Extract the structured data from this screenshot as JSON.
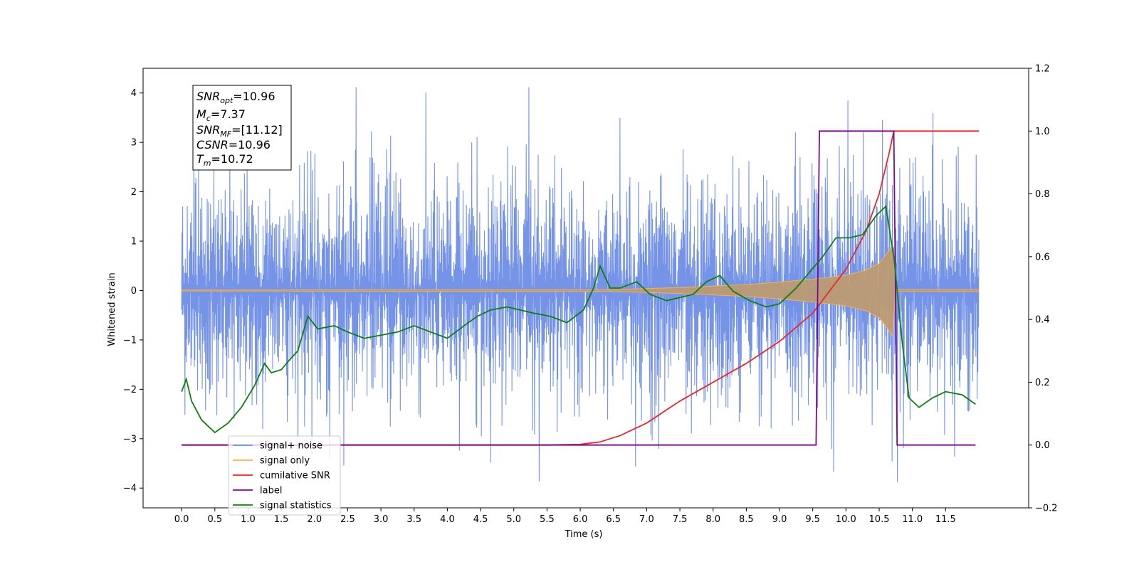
{
  "chart_data": {
    "type": "line",
    "xlabel": "Time (s)",
    "ylabel": "Whitened strain",
    "xlim": [
      -0.58,
      12.75
    ],
    "ylim": [
      -4.4,
      4.5
    ],
    "y2lim": [
      -0.2,
      1.2
    ],
    "x_ticks": [
      "0.0",
      "0.5",
      "1.0",
      "1.5",
      "2.0",
      "2.5",
      "3.0",
      "3.5",
      "4.0",
      "4.5",
      "5.0",
      "5.5",
      "6.0",
      "6.5",
      "7.0",
      "7.5",
      "8.0",
      "8.5",
      "9.0",
      "9.5",
      "10.0",
      "10.5",
      "11.0",
      "11.5"
    ],
    "y_ticks": [
      "4",
      "3",
      "2",
      "1",
      "0",
      "−1",
      "−2",
      "−3",
      "−4"
    ],
    "y2_ticks": [
      "1.2",
      "1.0",
      "0.8",
      "0.6",
      "0.4",
      "0.2",
      "0.0",
      "−0.2"
    ],
    "stats": [
      {
        "base": "SNR",
        "sub": "opt",
        "value": "=10.96"
      },
      {
        "base": "M",
        "sub": "c",
        "value": "=7.37"
      },
      {
        "base": "SNR",
        "sub": "MF",
        "value": "=[11.12]"
      },
      {
        "base": "CSNR",
        "sub": "",
        "value": "=10.96"
      },
      {
        "base": "T",
        "sub": "m",
        "value": "=10.72"
      }
    ],
    "legend_position": "lower-left",
    "series": [
      {
        "name": "signal+ noise",
        "color": "#6f8ee6",
        "axis": "left",
        "envelope": {
          "t_start": 0.0,
          "t_end": 12.0,
          "typical_amplitude": 1.7,
          "max": 4.12,
          "min": -3.88
        }
      },
      {
        "name": "signal only",
        "color": "#ffb347",
        "axis": "left",
        "chirp_envelope": {
          "t": [
            0.0,
            6.5,
            7.5,
            8.5,
            9.0,
            9.5,
            10.0,
            10.3,
            10.5,
            10.6,
            10.65,
            10.7,
            10.72,
            10.75,
            12.0
          ],
          "amp": [
            0.01,
            0.02,
            0.06,
            0.12,
            0.17,
            0.23,
            0.31,
            0.41,
            0.55,
            0.72,
            0.82,
            0.92,
            0.55,
            0.02,
            0.02
          ]
        }
      },
      {
        "name": "cumilative SNR",
        "color": "#e8262b",
        "axis": "right",
        "x": [
          0.0,
          5.5,
          6.0,
          6.3,
          6.6,
          7.0,
          7.5,
          8.0,
          8.5,
          9.0,
          9.5,
          10.0,
          10.3,
          10.5,
          10.65,
          10.72,
          12.0
        ],
        "y": [
          0.0,
          0.0,
          0.002,
          0.01,
          0.03,
          0.07,
          0.14,
          0.2,
          0.26,
          0.33,
          0.42,
          0.56,
          0.68,
          0.8,
          0.93,
          1.0,
          1.0
        ]
      },
      {
        "name": "label",
        "color": "#7b0a8c",
        "axis": "right",
        "x": [
          0.0,
          9.55,
          9.6,
          10.72,
          10.77,
          11.95
        ],
        "y": [
          0.0,
          0.0,
          1.0,
          1.0,
          0.0,
          0.0
        ]
      },
      {
        "name": "signal statistics",
        "color": "#107d10",
        "axis": "right",
        "x": [
          0.0,
          0.07,
          0.15,
          0.3,
          0.5,
          0.7,
          0.9,
          1.1,
          1.25,
          1.35,
          1.5,
          1.62,
          1.75,
          1.9,
          2.05,
          2.3,
          2.5,
          2.75,
          3.0,
          3.25,
          3.5,
          3.75,
          4.0,
          4.25,
          4.45,
          4.65,
          4.9,
          5.1,
          5.3,
          5.55,
          5.8,
          6.05,
          6.2,
          6.3,
          6.45,
          6.6,
          6.85,
          7.05,
          7.3,
          7.5,
          7.7,
          7.9,
          8.1,
          8.3,
          8.55,
          8.8,
          9.0,
          9.25,
          9.45,
          9.65,
          9.85,
          10.05,
          10.25,
          10.45,
          10.6,
          10.72,
          10.85,
          10.95,
          11.1,
          11.3,
          11.5,
          11.75,
          11.95
        ],
        "y": [
          0.17,
          0.21,
          0.14,
          0.08,
          0.04,
          0.07,
          0.12,
          0.19,
          0.26,
          0.23,
          0.24,
          0.27,
          0.3,
          0.41,
          0.37,
          0.38,
          0.36,
          0.34,
          0.35,
          0.36,
          0.38,
          0.36,
          0.34,
          0.38,
          0.41,
          0.43,
          0.44,
          0.43,
          0.42,
          0.41,
          0.39,
          0.43,
          0.5,
          0.57,
          0.5,
          0.5,
          0.52,
          0.48,
          0.46,
          0.47,
          0.48,
          0.52,
          0.54,
          0.49,
          0.46,
          0.44,
          0.45,
          0.5,
          0.55,
          0.6,
          0.66,
          0.66,
          0.67,
          0.73,
          0.76,
          0.6,
          0.32,
          0.15,
          0.12,
          0.15,
          0.17,
          0.16,
          0.13
        ]
      }
    ]
  }
}
